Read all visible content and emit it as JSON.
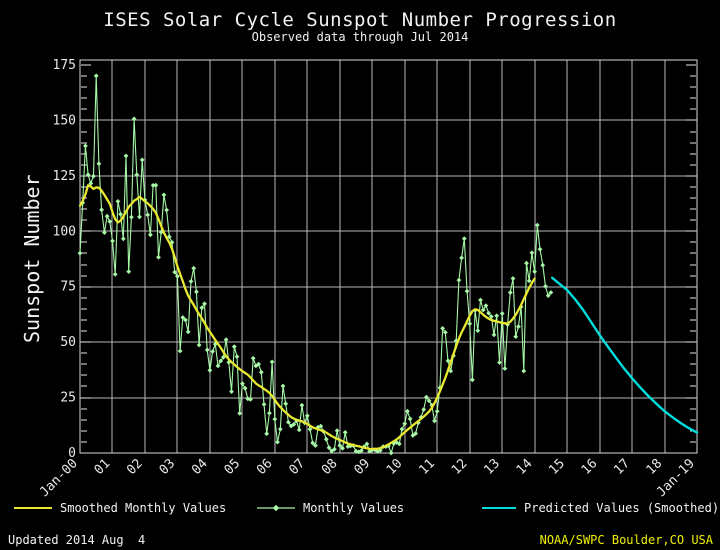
{
  "title": "ISES Solar Cycle Sunspot Number Progression",
  "subtitle": "Observed data through Jul 2014",
  "footer": {
    "updated": "Updated 2014 Aug  4",
    "credit": "NOAA/SWPC Boulder,CO USA"
  },
  "colors": {
    "background": "#000000",
    "grid": "#b8b8b8",
    "border": "#d8d8d8",
    "tick": "#e8e8e8",
    "text": "#f2f2f2",
    "credit_text": "#f0f000",
    "monthly": "#a6f7a6",
    "smoothed": "#e8e830",
    "predicted": "#00dddd"
  },
  "legend": [
    {
      "label": "Smoothed Monthly Values",
      "color": "#e8e830",
      "marker": "line"
    },
    {
      "label": "Monthly Values",
      "color": "#a6f7a6",
      "marker": "line-diamond"
    },
    {
      "label": "Predicted Values (Smoothed)",
      "color": "#00dddd",
      "marker": "line"
    }
  ],
  "chart_data": {
    "type": "line",
    "title": "ISES Solar Cycle Sunspot Number Progression",
    "subtitle": "Observed data through Jul 2014",
    "ylabel": "Sunspot Number",
    "xlabel": "",
    "grid": true,
    "x_axis": {
      "range": [
        2000,
        2019
      ],
      "tick_labels": [
        "Jan-00",
        "01",
        "02",
        "03",
        "04",
        "05",
        "06",
        "07",
        "08",
        "09",
        "10",
        "11",
        "12",
        "13",
        "14",
        "15",
        "16",
        "17",
        "18",
        "Jan-19"
      ]
    },
    "y_axis": {
      "min": 0,
      "max": 175,
      "top_padding_value": 177,
      "tick_step": 25,
      "minor_tick_step": 5,
      "tick_labels": [
        0,
        25,
        50,
        75,
        100,
        125,
        150,
        175
      ]
    },
    "series": [
      {
        "name": "Monthly Values",
        "color": "#a6f7a6",
        "style": "thin-line-diamond-markers",
        "start_year": 2000,
        "start_month": 1,
        "values": [
          90.1,
          112.9,
          138.5,
          125.5,
          121.6,
          124.9,
          170.1,
          130.5,
          109.7,
          99.4,
          106.8,
          104.4,
          95.6,
          80.6,
          113.5,
          107.7,
          96.6,
          134.0,
          81.8,
          106.4,
          150.7,
          125.5,
          106.5,
          132.2,
          114.1,
          107.4,
          98.4,
          120.7,
          120.8,
          88.3,
          99.6,
          116.4,
          109.6,
          97.5,
          95.0,
          81.6,
          79.7,
          46.0,
          61.1,
          60.0,
          54.6,
          77.4,
          83.3,
          72.7,
          48.7,
          65.5,
          67.3,
          46.5,
          37.3,
          45.8,
          49.1,
          39.3,
          41.5,
          43.2,
          51.1,
          40.9,
          27.7,
          48.0,
          43.5,
          17.9,
          31.3,
          29.2,
          24.5,
          24.2,
          42.7,
          39.3,
          40.1,
          36.4,
          21.9,
          8.7,
          18.0,
          41.1,
          15.3,
          4.9,
          10.8,
          30.2,
          22.2,
          13.9,
          12.2,
          12.9,
          14.5,
          10.4,
          21.5,
          13.6,
          16.8,
          10.7,
          4.5,
          3.4,
          11.7,
          12.1,
          9.7,
          6.2,
          2.4,
          0.9,
          1.7,
          10.1,
          3.4,
          2.1,
          9.3,
          2.9,
          3.2,
          3.4,
          0.8,
          0.5,
          1.1,
          2.9,
          4.1,
          0.8,
          1.5,
          1.4,
          0.7,
          1.2,
          2.9,
          2.9,
          3.2,
          0.0,
          4.3,
          4.8,
          4.1,
          10.8,
          13.2,
          18.8,
          15.4,
          7.9,
          8.8,
          13.6,
          16.1,
          19.6,
          25.2,
          23.5,
          21.6,
          14.5,
          18.8,
          29.4,
          56.2,
          54.4,
          41.6,
          37.0,
          43.9,
          50.6,
          78.0,
          88.0,
          96.7,
          73.0,
          58.3,
          33.0,
          64.3,
          55.2,
          69.0,
          64.5,
          66.5,
          63.1,
          61.5,
          53.3,
          61.9,
          40.8,
          62.9,
          38.1,
          57.9,
          72.4,
          78.7,
          52.5,
          57.0,
          66.0,
          37.0,
          85.6,
          77.6,
          90.3,
          81.8,
          102.8,
          91.9,
          84.7,
          75.2,
          71.0,
          72.4
        ]
      },
      {
        "name": "Smoothed Monthly Values",
        "color": "#e8e830",
        "style": "thick-line",
        "start_year": 2000,
        "start_month": 1,
        "values": [
          111.5,
          113.6,
          116.6,
          120.8,
          120.2,
          119.1,
          119.8,
          119.6,
          118.3,
          116.4,
          114.4,
          112.4,
          108.7,
          105.5,
          104.0,
          104.8,
          106.6,
          108.9,
          111.0,
          112.3,
          113.8,
          114.5,
          115.5,
          114.6,
          113.5,
          112.6,
          111.4,
          110.1,
          108.4,
          105.5,
          102.4,
          99.4,
          97.0,
          94.9,
          92.1,
          88.3,
          84.2,
          80.8,
          77.4,
          73.9,
          70.9,
          68.8,
          66.8,
          64.6,
          62.6,
          60.7,
          58.7,
          56.5,
          54.6,
          52.8,
          50.9,
          49.2,
          47.5,
          45.6,
          43.7,
          42.2,
          41.0,
          39.9,
          38.8,
          37.8,
          36.9,
          36.1,
          35.3,
          34.1,
          32.7,
          31.4,
          30.5,
          29.8,
          28.9,
          28.1,
          27.1,
          25.7,
          24.0,
          22.2,
          20.7,
          19.5,
          18.3,
          17.2,
          16.2,
          15.5,
          15.0,
          14.6,
          14.3,
          13.8,
          13.1,
          12.3,
          11.6,
          11.1,
          10.7,
          10.3,
          9.8,
          9.2,
          8.4,
          7.6,
          7.0,
          6.4,
          5.9,
          5.3,
          4.8,
          4.3,
          3.9,
          3.6,
          3.3,
          3.0,
          2.7,
          2.4,
          2.1,
          1.8,
          1.8,
          1.9,
          2.0,
          2.2,
          2.6,
          3.2,
          3.9,
          4.6,
          5.3,
          6.1,
          7.1,
          8.3,
          9.4,
          10.4,
          11.4,
          12.5,
          13.5,
          14.4,
          15.4,
          16.4,
          17.5,
          18.7,
          20.4,
          22.5,
          25.0,
          27.8,
          30.8,
          33.9,
          37.3,
          40.9,
          44.5,
          48.2,
          51.6,
          54.4,
          56.8,
          59.3,
          61.9,
          64.0,
          64.8,
          64.5,
          63.5,
          62.4,
          61.4,
          60.6,
          60.0,
          59.6,
          59.4,
          59.0,
          58.7,
          58.5,
          58.4,
          59.2,
          60.6,
          62.3,
          64.4,
          66.8,
          69.4,
          72.0,
          74.5,
          76.7,
          78.6
        ]
      },
      {
        "name": "Predicted Values (Smoothed)",
        "color": "#00dddd",
        "style": "thick-line",
        "points": [
          [
            2014.54,
            79.0
          ],
          [
            2014.75,
            76.5
          ],
          [
            2015.0,
            73.5
          ],
          [
            2015.25,
            69.3
          ],
          [
            2015.5,
            64.4
          ],
          [
            2015.75,
            58.8
          ],
          [
            2016.0,
            53.2
          ],
          [
            2016.25,
            48.1
          ],
          [
            2016.5,
            43.1
          ],
          [
            2016.75,
            38.2
          ],
          [
            2017.0,
            33.7
          ],
          [
            2017.25,
            29.6
          ],
          [
            2017.5,
            25.7
          ],
          [
            2017.75,
            22.2
          ],
          [
            2018.0,
            18.9
          ],
          [
            2018.25,
            16.1
          ],
          [
            2018.5,
            13.5
          ],
          [
            2018.75,
            11.2
          ],
          [
            2019.0,
            9.2
          ]
        ]
      }
    ]
  }
}
